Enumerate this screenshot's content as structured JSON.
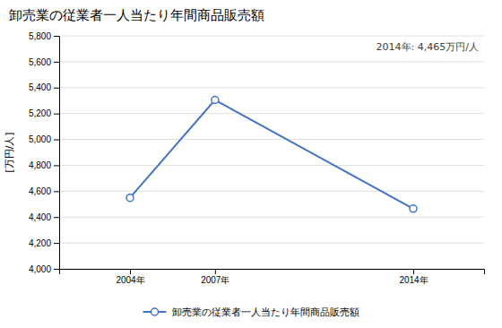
{
  "chart_data": {
    "type": "line",
    "title": "卸売業の従業者一人当たり年間商品販売額",
    "ylabel": "[万円/人]",
    "annotation": "2014年: 4,465万円/人",
    "x": [
      2004,
      2007,
      2014
    ],
    "xlim": [
      2001.5,
      2016.5
    ],
    "xticks": [
      {
        "value": 2004,
        "label": "2004年"
      },
      {
        "value": 2007,
        "label": "2007年"
      },
      {
        "value": 2014,
        "label": "2014年"
      }
    ],
    "series": [
      {
        "name": "卸売業の従業者一人当たり年間商品販売額",
        "color": "#4472C4",
        "marker": "o",
        "values": [
          4549,
          5305,
          4465
        ]
      }
    ],
    "ylim": [
      4000,
      5800
    ],
    "yticks": [
      {
        "value": 4000,
        "label": "4,000"
      },
      {
        "value": 4200,
        "label": "4,200"
      },
      {
        "value": 4400,
        "label": "4,400"
      },
      {
        "value": 4600,
        "label": "4,600"
      },
      {
        "value": 4800,
        "label": "4,800"
      },
      {
        "value": 5000,
        "label": "5,000"
      },
      {
        "value": 5200,
        "label": "5,200"
      },
      {
        "value": 5400,
        "label": "5,400"
      },
      {
        "value": 5600,
        "label": "5,600"
      },
      {
        "value": 5800,
        "label": "5,800"
      }
    ],
    "grid": true,
    "legend": "bottom"
  }
}
